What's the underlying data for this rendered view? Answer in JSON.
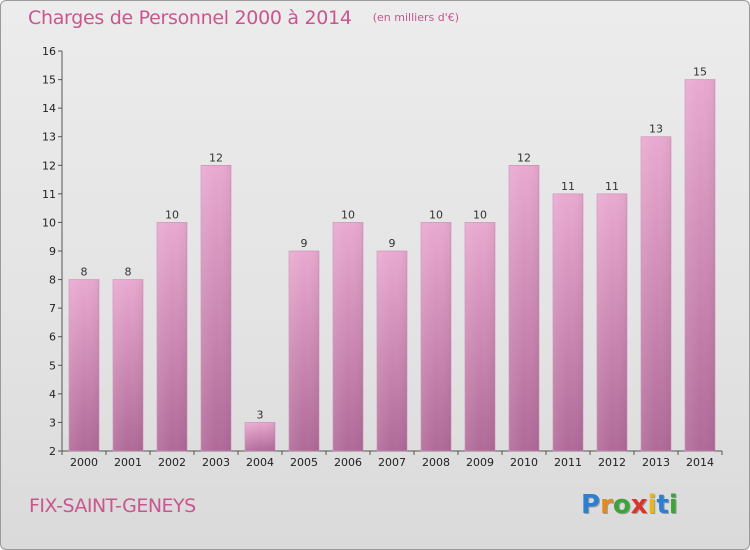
{
  "header": {
    "title": "Charges de Personnel 2000 à 2014",
    "subtitle": "(en milliers d'€)"
  },
  "footer": {
    "commune": "FIX-SAINT-GENEYS",
    "logo": "Proxiti",
    "logo_letters": [
      "P",
      "r",
      "o",
      "x",
      "i",
      "t",
      "i"
    ]
  },
  "colors": {
    "title": "#c9568f",
    "bar_top": "#e9a9d0",
    "bar_bottom": "#b06a98",
    "axis": "#555555"
  },
  "chart_data": {
    "type": "bar",
    "categories": [
      "2000",
      "2001",
      "2002",
      "2003",
      "2004",
      "2005",
      "2006",
      "2007",
      "2008",
      "2009",
      "2010",
      "2011",
      "2012",
      "2013",
      "2014"
    ],
    "values": [
      8,
      8,
      10,
      12,
      3,
      9,
      10,
      9,
      10,
      10,
      12,
      11,
      11,
      13,
      15
    ],
    "data_labels": [
      "8",
      "8",
      "10",
      "12",
      "3",
      "9",
      "10",
      "9",
      "10",
      "10",
      "12",
      "11",
      "11",
      "13",
      "15"
    ],
    "yticks": [
      "2",
      "3",
      "4",
      "5",
      "6",
      "7",
      "8",
      "9",
      "10",
      "11",
      "12",
      "13",
      "14",
      "15",
      "16"
    ],
    "ylim": [
      2,
      16
    ],
    "title": "Charges de Personnel 2000 à 2014",
    "xlabel": "",
    "ylabel": "",
    "grid": false,
    "legend": "none"
  }
}
